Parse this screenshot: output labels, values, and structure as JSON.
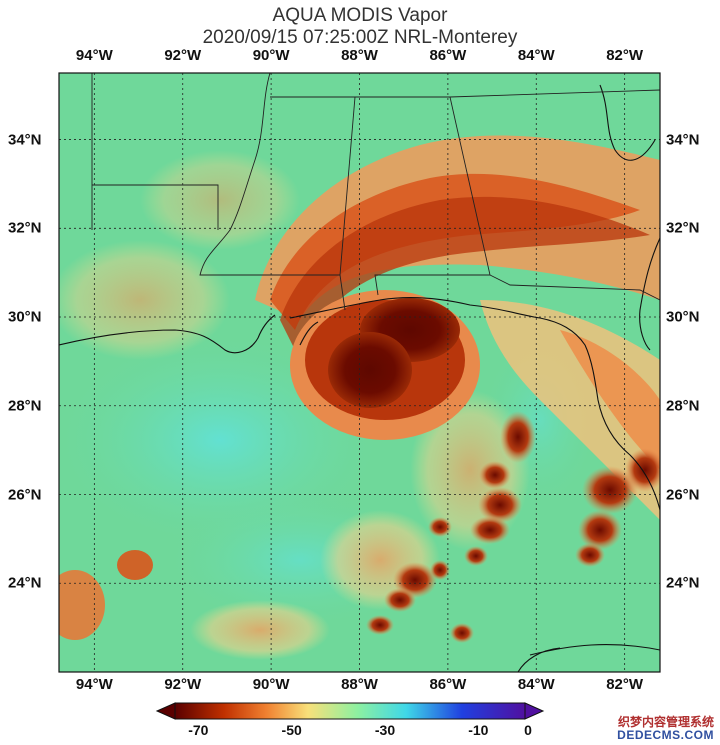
{
  "title": {
    "line1": "AQUA MODIS Vapor",
    "line2": "2020/09/15 07:25:00Z NRL-Monterey"
  },
  "map": {
    "lon_labels": [
      "94°W",
      "92°W",
      "90°W",
      "88°W",
      "86°W",
      "84°W",
      "82°W"
    ],
    "lat_labels": [
      "34°N",
      "32°N",
      "30°N",
      "28°N",
      "26°N",
      "24°N"
    ],
    "lon_values": [
      -94,
      -92,
      -90,
      -88,
      -86,
      -84,
      -82
    ],
    "lat_values": [
      34,
      32,
      30,
      28,
      26,
      24
    ],
    "extent": {
      "lon_min": -94.8,
      "lon_max": -81.2,
      "lat_min": 22.0,
      "lat_max": 35.5
    },
    "gridlines": true,
    "background_color": "#6fd89a",
    "storm_core_color": "#6b0b00"
  },
  "colorbar": {
    "tick_labels": [
      "-70",
      "-50",
      "-30",
      "-10",
      "0"
    ],
    "tick_values": [
      -70,
      -50,
      -30,
      -10,
      0
    ],
    "range": [
      -75,
      0
    ],
    "colors": [
      "#5a0000",
      "#c03000",
      "#f08030",
      "#f8e07a",
      "#8ef0a0",
      "#3fd8e8",
      "#2040e0",
      "#5010a0"
    ]
  },
  "watermark": {
    "line1": "织梦内容管理系统",
    "line2": "DEDECMS.COM"
  }
}
